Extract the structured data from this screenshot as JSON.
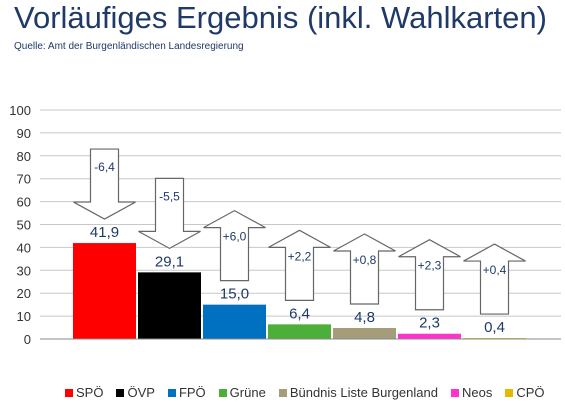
{
  "title": "Vorläufiges Ergebnis (inkl. Wahlkarten)",
  "subtitle": "Quelle: Amt der Burgenländischen Landesregierung",
  "chart_data": {
    "type": "bar",
    "categories": [
      "SPÖ",
      "ÖVP",
      "FPÖ",
      "Grüne",
      "Bündnis Liste Burgenland",
      "Neos",
      "CPÖ"
    ],
    "values": [
      41.9,
      29.1,
      15.0,
      6.4,
      4.8,
      2.3,
      0.4
    ],
    "value_labels": [
      "41,9",
      "29,1",
      "15,0",
      "6,4",
      "4,8",
      "2,3",
      "0,4"
    ],
    "changes": [
      -6.4,
      -5.5,
      6.0,
      2.2,
      0.8,
      2.3,
      0.4
    ],
    "change_labels": [
      "-6,4",
      "-5,5",
      "+6,0",
      "+2,2",
      "+0,8",
      "+2,3",
      "+0,4"
    ],
    "colors": [
      "#ff0000",
      "#000000",
      "#0070c0",
      "#4caf3a",
      "#a59d7a",
      "#ff33cc",
      "#e6b800"
    ],
    "ylim": [
      0,
      100
    ],
    "yticks": [
      0,
      10,
      20,
      30,
      40,
      50,
      60,
      70,
      80,
      90,
      100
    ],
    "grid": true,
    "legend_position": "bottom"
  }
}
